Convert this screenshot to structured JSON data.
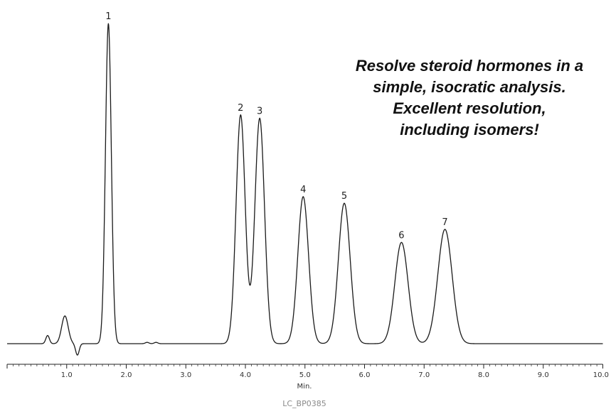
{
  "chart_data": {
    "type": "line",
    "title": "",
    "xlabel": "Min.",
    "ylabel": "",
    "xlim": [
      0,
      10
    ],
    "x_ticks": [
      "1.0",
      "2.0",
      "3.0",
      "4.0",
      "5.0",
      "6.0",
      "7.0",
      "8.0",
      "9.0",
      "10.0"
    ],
    "grid": false,
    "legend": "none",
    "line_color": "#1a1a1a",
    "series": [
      {
        "peaks": [
          {
            "label": "1",
            "rt": 1.7,
            "height": 0.98
          },
          {
            "label": "2",
            "rt": 3.92,
            "height": 0.7
          },
          {
            "label": "3",
            "rt": 4.24,
            "height": 0.69
          },
          {
            "label": "4",
            "rt": 4.97,
            "height": 0.45
          },
          {
            "label": "5",
            "rt": 5.66,
            "height": 0.43
          },
          {
            "label": "6",
            "rt": 6.62,
            "height": 0.31
          },
          {
            "label": "7",
            "rt": 7.35,
            "height": 0.35
          }
        ],
        "minor_features": [
          {
            "rt": 0.68,
            "height": 0.025
          },
          {
            "rt": 0.97,
            "height": 0.085
          },
          {
            "rt": 1.18,
            "height": -0.035
          },
          {
            "rt": 2.35,
            "height": 0.004
          },
          {
            "rt": 2.5,
            "height": 0.004
          }
        ]
      }
    ]
  },
  "callout": {
    "lines": [
      "Resolve steroid hormones in a",
      "simple, isocratic analysis.",
      "Excellent resolution,",
      "including isomers!"
    ]
  },
  "figure_code": "LC_BP0385"
}
